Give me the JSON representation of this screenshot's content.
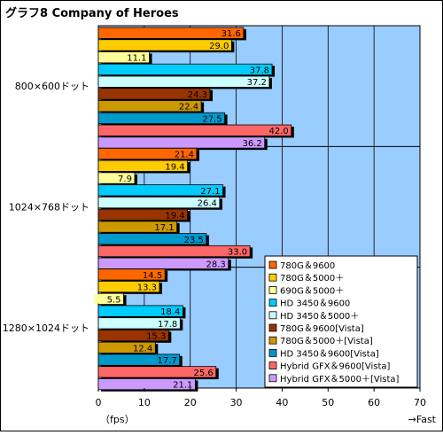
{
  "title": "グラフ8  Company of Heroes",
  "chart_data": {
    "type": "bar",
    "orientation": "horizontal",
    "title": "グラフ8  Company of Heroes",
    "xlabel": "（fps）",
    "x_direction_label": "→Fast",
    "xlim": [
      0,
      70
    ],
    "xticks": [
      0,
      10,
      20,
      30,
      40,
      50,
      60,
      70
    ],
    "grid": true,
    "legend_position": "bottom-right",
    "categories": [
      "800×600ドット",
      "1024×768ドット",
      "1280×1024ドット"
    ],
    "series": [
      {
        "name": "780G＆9600",
        "color": "#ff6600",
        "values": [
          31.6,
          21.4,
          14.5
        ]
      },
      {
        "name": "780G＆5000＋",
        "color": "#ffcc00",
        "values": [
          29.0,
          19.4,
          13.3
        ]
      },
      {
        "name": "690G＆5000＋",
        "color": "#ffff99",
        "values": [
          11.1,
          7.9,
          5.5
        ]
      },
      {
        "name": "HD 3450＆9600",
        "color": "#00ccff",
        "values": [
          37.8,
          27.1,
          18.4
        ]
      },
      {
        "name": "HD 3450＆5000＋",
        "color": "#ccffff",
        "values": [
          37.2,
          26.4,
          17.8
        ]
      },
      {
        "name": "780G＆9600[Vista]",
        "color": "#993300",
        "values": [
          24.3,
          19.4,
          15.3
        ]
      },
      {
        "name": "780G＆5000＋[Vista]",
        "color": "#cc9900",
        "values": [
          22.4,
          17.1,
          12.4
        ]
      },
      {
        "name": "HD 3450＆9600[Vista]",
        "color": "#0099cc",
        "values": [
          27.5,
          23.5,
          17.7
        ]
      },
      {
        "name": "Hybrid GFX＆9600[Vista]",
        "color": "#ff6666",
        "values": [
          42.0,
          33.0,
          25.6
        ]
      },
      {
        "name": "Hybrid GFX＆5000＋[Vista]",
        "color": "#cc99ff",
        "values": [
          36.2,
          28.3,
          21.1
        ]
      }
    ]
  }
}
